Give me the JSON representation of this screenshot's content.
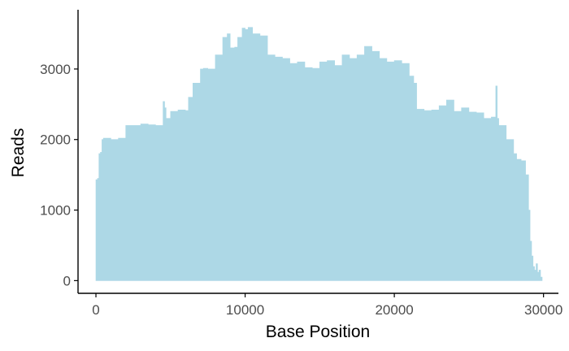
{
  "chart_data": {
    "type": "area",
    "title": "",
    "xlabel": "Base Position",
    "ylabel": "Reads",
    "xlim": [
      -1200,
      31000
    ],
    "ylim": [
      -180,
      3840
    ],
    "x_ticks": [
      0,
      10000,
      20000,
      30000
    ],
    "x_tick_labels": [
      "0",
      "10000",
      "20000",
      "30000"
    ],
    "y_ticks": [
      0,
      1000,
      2000,
      3000
    ],
    "y_tick_labels": [
      "0",
      "1000",
      "2000",
      "3000"
    ],
    "grid": false,
    "legend": "none",
    "colors": {
      "fill": "#add8e6",
      "axis": "#000000",
      "tick_text": "#4d4d4d"
    },
    "series": [
      {
        "x": [
          0,
          100,
          200,
          300,
          400,
          500,
          1000,
          1500,
          2000,
          2500,
          3000,
          3500,
          4000,
          4500,
          4500,
          4600,
          4700,
          5000,
          5500,
          6000,
          6200,
          6500,
          7000,
          7200,
          7500,
          8000,
          8500,
          8800,
          9000,
          9300,
          9500,
          9800,
          10000,
          10200,
          10500,
          11000,
          11500,
          12000,
          12500,
          13000,
          13500,
          14000,
          14500,
          15000,
          15500,
          16000,
          16500,
          17000,
          17500,
          18000,
          18500,
          19000,
          19500,
          20000,
          20500,
          21000,
          21300,
          21500,
          22000,
          22500,
          23000,
          23500,
          24000,
          24500,
          25000,
          25500,
          26000,
          26500,
          26800,
          26800,
          26900,
          27000,
          27500,
          28000,
          28200,
          28500,
          28800,
          29000,
          29100,
          29200,
          29300,
          29400,
          29500,
          29600,
          29700,
          29800
        ],
        "y": [
          1430,
          1450,
          1800,
          1820,
          2000,
          2020,
          2000,
          2020,
          2200,
          2200,
          2220,
          2210,
          2200,
          2230,
          2540,
          2450,
          2300,
          2400,
          2420,
          2410,
          2600,
          2800,
          3000,
          3010,
          3000,
          3200,
          3450,
          3500,
          3300,
          3310,
          3450,
          3580,
          3560,
          3590,
          3500,
          3470,
          3200,
          3170,
          3150,
          3080,
          3100,
          3020,
          3010,
          3100,
          3120,
          3050,
          3200,
          3150,
          3200,
          3320,
          3250,
          3150,
          3100,
          3120,
          3080,
          2900,
          2800,
          2430,
          2410,
          2420,
          2480,
          2560,
          2400,
          2450,
          2390,
          2380,
          2300,
          2320,
          2300,
          2760,
          2300,
          2200,
          2000,
          1800,
          1720,
          1700,
          1500,
          1000,
          560,
          350,
          200,
          150,
          240,
          120,
          150,
          50
        ]
      }
    ]
  }
}
